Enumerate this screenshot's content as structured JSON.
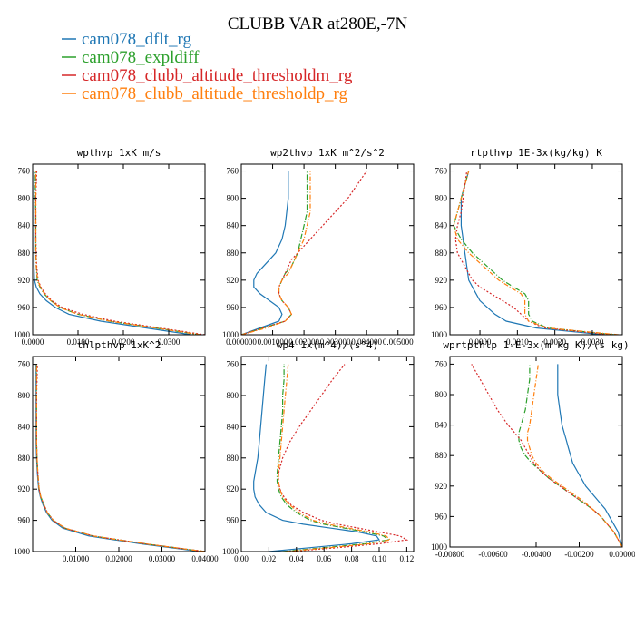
{
  "figure": {
    "title": "CLUBB VAR at280E,-7N",
    "legend": [
      {
        "label": "cam078_dflt_rg",
        "color": "#1f77b4"
      },
      {
        "label": "cam078_expldiff",
        "color": "#2ca02c"
      },
      {
        "label": "cam078_clubb_altitude_thresholdm_rg",
        "color": "#d62728"
      },
      {
        "label": "cam078_clubb_altitude_thresholdp_rg",
        "color": "#ff7f0e"
      }
    ]
  },
  "chart_data": [
    {
      "type": "line",
      "title": "wpthvp  1xK m/s",
      "xlim": [
        0,
        0.038
      ],
      "ylim": [
        1000,
        750
      ],
      "y_reversed": true,
      "xticks": [
        0,
        0.01,
        0.02,
        0.03
      ],
      "xtick_labels": [
        "0.0000",
        "0.0100",
        "0.0200",
        "0.0300"
      ],
      "yticks": [
        760,
        800,
        840,
        880,
        920,
        960,
        1000
      ],
      "y": [
        1000,
        990,
        980,
        970,
        960,
        950,
        940,
        930,
        920,
        900,
        880,
        860,
        840,
        820,
        800,
        780,
        760
      ],
      "series": [
        {
          "name": "cam078_dflt_rg",
          "x": [
            0.035,
            0.025,
            0.015,
            0.008,
            0.005,
            0.003,
            0.0016,
            0.0008,
            0.0004,
            0.0003,
            0.0003,
            0.0003,
            0.0003,
            0.0003,
            0.0003,
            0.0003,
            0.0003
          ]
        },
        {
          "name": "cam078_expldiff",
          "x": [
            0.037,
            0.027,
            0.017,
            0.01,
            0.006,
            0.004,
            0.0025,
            0.0016,
            0.001,
            0.0008,
            0.0007,
            0.0007,
            0.0007,
            0.0007,
            0.0006,
            0.0006,
            0.0006
          ]
        },
        {
          "name": "cam078_clubb_altitude_thresholdm_rg",
          "x": [
            0.038,
            0.028,
            0.018,
            0.011,
            0.0065,
            0.0042,
            0.0028,
            0.0018,
            0.0012,
            0.0009,
            0.0008,
            0.0007,
            0.0007,
            0.0007,
            0.0007,
            0.0008,
            0.0009
          ]
        },
        {
          "name": "cam078_clubb_altitude_thresholdp_rg",
          "x": [
            0.037,
            0.027,
            0.017,
            0.01,
            0.006,
            0.004,
            0.0026,
            0.0017,
            0.0011,
            0.0008,
            0.0007,
            0.0007,
            0.0007,
            0.0007,
            0.0007,
            0.0007,
            0.0007
          ]
        }
      ]
    },
    {
      "type": "line",
      "title": "wp2thvp  1xK m^2/s^2",
      "xlim": [
        0,
        0.0055
      ],
      "ylim": [
        1000,
        750
      ],
      "y_reversed": true,
      "xticks": [
        0,
        0.001,
        0.002,
        0.003,
        0.004,
        0.005
      ],
      "xtick_labels": [
        "0.000000",
        "0.001000",
        "0.002000",
        "0.003000",
        "0.004000",
        "0.005000"
      ],
      "yticks": [
        760,
        800,
        840,
        880,
        920,
        960,
        1000
      ],
      "y": [
        1000,
        990,
        980,
        970,
        960,
        950,
        940,
        930,
        920,
        910,
        900,
        890,
        880,
        860,
        840,
        820,
        800,
        780,
        760
      ],
      "series": [
        {
          "name": "cam078_dflt_rg",
          "x": [
            0,
            0.0006,
            0.0012,
            0.0013,
            0.0012,
            0.0009,
            0.0006,
            0.0004,
            0.0004,
            0.0005,
            0.0007,
            0.0009,
            0.0011,
            0.0013,
            0.0014,
            0.00145,
            0.0015,
            0.0015,
            0.0015
          ]
        },
        {
          "name": "cam078_expldiff",
          "x": [
            0,
            0.0007,
            0.0014,
            0.0016,
            0.0015,
            0.0013,
            0.0012,
            0.0012,
            0.0013,
            0.0014,
            0.0016,
            0.0017,
            0.0018,
            0.0019,
            0.002,
            0.0021,
            0.0021,
            0.0021,
            0.0021
          ]
        },
        {
          "name": "cam078_clubb_altitude_thresholdm_rg",
          "x": [
            0,
            0.0007,
            0.0014,
            0.0016,
            0.0015,
            0.0013,
            0.0012,
            0.0012,
            0.0013,
            0.0014,
            0.0015,
            0.0016,
            0.0018,
            0.0022,
            0.0026,
            0.003,
            0.0034,
            0.0037,
            0.004
          ]
        },
        {
          "name": "cam078_clubb_altitude_thresholdp_rg",
          "x": [
            0,
            0.0008,
            0.0014,
            0.0016,
            0.0015,
            0.0013,
            0.0012,
            0.0012,
            0.0013,
            0.0015,
            0.0016,
            0.0017,
            0.0018,
            0.002,
            0.0021,
            0.0022,
            0.0022,
            0.0022,
            0.0022
          ]
        }
      ]
    },
    {
      "type": "line",
      "title": "rtpthvp  1E-3x(kg/kg) K",
      "xlim": [
        -0.0008,
        0.0038
      ],
      "ylim": [
        1000,
        750
      ],
      "y_reversed": true,
      "xticks": [
        0,
        0.001,
        0.002,
        0.003
      ],
      "xtick_labels": [
        "0.0000",
        "0.0010",
        "0.0020",
        "0.0030"
      ],
      "yticks": [
        760,
        800,
        840,
        880,
        920,
        960,
        1000
      ],
      "y": [
        1000,
        990,
        980,
        970,
        960,
        950,
        940,
        930,
        920,
        900,
        880,
        860,
        840,
        820,
        800,
        780,
        760
      ],
      "series": [
        {
          "name": "cam078_dflt_rg",
          "x": [
            0.0033,
            0.0015,
            0.0007,
            0.0004,
            0.0002,
            0,
            -0.0001,
            -0.0002,
            -0.0003,
            -0.00035,
            -0.0004,
            -0.00045,
            -0.0005,
            -0.0005,
            -0.0005,
            -0.0004,
            -0.0003
          ]
        },
        {
          "name": "cam078_expldiff",
          "x": [
            0.0036,
            0.0018,
            0.0014,
            0.0013,
            0.0013,
            0.0013,
            0.0012,
            0.0009,
            0.0006,
            0.0002,
            -0.0002,
            -0.0005,
            -0.0007,
            -0.0006,
            -0.0005,
            -0.0004,
            -0.0003
          ]
        },
        {
          "name": "cam078_clubb_altitude_thresholdm_rg",
          "x": [
            0.0035,
            0.0017,
            0.0013,
            0.0011,
            0.0009,
            0.0006,
            0.0003,
            0,
            -0.0002,
            -0.0004,
            -0.0006,
            -0.00065,
            -0.0006,
            -0.0005,
            -0.00045,
            -0.0004,
            -0.00035
          ]
        },
        {
          "name": "cam078_clubb_altitude_thresholdp_rg",
          "x": [
            0.0037,
            0.0018,
            0.0013,
            0.0012,
            0.0012,
            0.0012,
            0.0011,
            0.0008,
            0.0005,
            0.0001,
            -0.0003,
            -0.0006,
            -0.0007,
            -0.0006,
            -0.0005,
            -0.0004,
            -0.0003
          ]
        }
      ]
    },
    {
      "type": "line",
      "title": "thlpthvp  1xK^2",
      "xlim": [
        0,
        0.04
      ],
      "ylim": [
        1000,
        750
      ],
      "y_reversed": true,
      "xticks": [
        0.01,
        0.02,
        0.03,
        0.04
      ],
      "xtick_labels": [
        "0.01000",
        "0.02000",
        "0.03000",
        "0.04000"
      ],
      "yticks": [
        760,
        800,
        840,
        880,
        920,
        960,
        1000
      ],
      "y": [
        1000,
        990,
        980,
        970,
        960,
        950,
        940,
        930,
        920,
        900,
        880,
        860,
        840,
        820,
        800,
        780,
        760
      ],
      "series": [
        {
          "name": "cam078_dflt_rg",
          "x": [
            0.039,
            0.025,
            0.013,
            0.007,
            0.0045,
            0.0032,
            0.0024,
            0.0018,
            0.0014,
            0.0011,
            0.0009,
            0.0008,
            0.0008,
            0.0008,
            0.0008,
            0.0008,
            0.0008
          ]
        },
        {
          "name": "cam078_expldiff",
          "x": [
            0.04,
            0.026,
            0.014,
            0.0075,
            0.0048,
            0.0034,
            0.0026,
            0.0019,
            0.0015,
            0.0012,
            0.001,
            0.0009,
            0.0009,
            0.0009,
            0.0009,
            0.0009,
            0.0009
          ]
        },
        {
          "name": "cam078_clubb_altitude_thresholdm_rg",
          "x": [
            0.04,
            0.026,
            0.014,
            0.0075,
            0.0048,
            0.0034,
            0.0026,
            0.0019,
            0.0015,
            0.0012,
            0.001,
            0.0009,
            0.0009,
            0.0009,
            0.0009,
            0.001,
            0.0011
          ]
        },
        {
          "name": "cam078_clubb_altitude_thresholdp_rg",
          "x": [
            0.04,
            0.026,
            0.014,
            0.0075,
            0.0048,
            0.0034,
            0.0026,
            0.0019,
            0.0015,
            0.0012,
            0.001,
            0.0009,
            0.0009,
            0.0009,
            0.0009,
            0.0009,
            0.0009
          ]
        }
      ]
    },
    {
      "type": "line",
      "title": "wp4  1x(m^4)/(s^4)",
      "xlim": [
        0,
        0.125
      ],
      "ylim": [
        1000,
        750
      ],
      "y_reversed": true,
      "xticks": [
        0,
        0.02,
        0.04,
        0.06,
        0.08,
        0.1,
        0.12
      ],
      "xtick_labels": [
        "0.00",
        "0.02",
        "0.04",
        "0.06",
        "0.08",
        "0.10",
        "0.12"
      ],
      "yticks": [
        760,
        800,
        840,
        880,
        920,
        960,
        1000
      ],
      "y": [
        1000,
        995,
        990,
        985,
        980,
        975,
        970,
        965,
        960,
        950,
        940,
        930,
        920,
        910,
        900,
        880,
        860,
        840,
        820,
        800,
        780,
        760
      ],
      "series": [
        {
          "name": "cam078_dflt_rg",
          "x": [
            0.02,
            0.05,
            0.08,
            0.1,
            0.098,
            0.085,
            0.065,
            0.045,
            0.03,
            0.018,
            0.013,
            0.01,
            0.009,
            0.009,
            0.01,
            0.012,
            0.013,
            0.014,
            0.015,
            0.016,
            0.017,
            0.018
          ]
        },
        {
          "name": "cam078_expldiff",
          "x": [
            0.03,
            0.06,
            0.09,
            0.107,
            0.103,
            0.09,
            0.075,
            0.06,
            0.05,
            0.04,
            0.033,
            0.029,
            0.027,
            0.026,
            0.026,
            0.027,
            0.028,
            0.029,
            0.03,
            0.03,
            0.031,
            0.031
          ]
        },
        {
          "name": "cam078_clubb_altitude_thresholdm_rg",
          "x": [
            0.035,
            0.07,
            0.1,
            0.12,
            0.115,
            0.1,
            0.085,
            0.07,
            0.058,
            0.045,
            0.036,
            0.031,
            0.028,
            0.027,
            0.027,
            0.03,
            0.035,
            0.042,
            0.05,
            0.058,
            0.066,
            0.075
          ]
        },
        {
          "name": "cam078_clubb_altitude_thresholdp_rg",
          "x": [
            0.032,
            0.064,
            0.093,
            0.108,
            0.105,
            0.093,
            0.078,
            0.063,
            0.052,
            0.042,
            0.035,
            0.03,
            0.028,
            0.027,
            0.027,
            0.028,
            0.029,
            0.03,
            0.031,
            0.032,
            0.033,
            0.034
          ]
        }
      ]
    },
    {
      "type": "line",
      "title": "wprtpthlp  1-E-3x(m kg K)/(s kg)",
      "xlim": [
        -0.008,
        0
      ],
      "ylim": [
        1000,
        750
      ],
      "y_reversed": true,
      "xticks": [
        -0.008,
        -0.006,
        -0.004,
        -0.002,
        0
      ],
      "xtick_labels": [
        "-0.00800",
        "-0.00600",
        "-0.00400",
        "-0.00200",
        "0.00000"
      ],
      "yticks": [
        760,
        800,
        840,
        880,
        920,
        960,
        1000
      ],
      "y": [
        1000,
        990,
        980,
        970,
        960,
        950,
        940,
        930,
        920,
        910,
        900,
        890,
        880,
        870,
        860,
        850,
        840,
        820,
        800,
        780,
        760
      ],
      "series": [
        {
          "name": "cam078_dflt_rg",
          "x": [
            0,
            -0.0001,
            -0.0002,
            -0.0004,
            -0.0006,
            -0.0008,
            -0.0011,
            -0.0014,
            -0.0017,
            -0.0019,
            -0.0021,
            -0.0023,
            -0.0024,
            -0.0025,
            -0.0026,
            -0.0027,
            -0.0028,
            -0.0029,
            -0.003,
            -0.003,
            -0.003
          ]
        },
        {
          "name": "cam078_expldiff",
          "x": [
            0,
            -0.0002,
            -0.0004,
            -0.0007,
            -0.001,
            -0.0014,
            -0.0019,
            -0.0024,
            -0.0029,
            -0.0034,
            -0.0038,
            -0.0042,
            -0.0045,
            -0.0047,
            -0.0048,
            -0.0048,
            -0.0047,
            -0.0045,
            -0.0044,
            -0.0043,
            -0.0043
          ]
        },
        {
          "name": "cam078_clubb_altitude_thresholdm_rg",
          "x": [
            0,
            -0.0002,
            -0.0004,
            -0.0007,
            -0.001,
            -0.0014,
            -0.0019,
            -0.0024,
            -0.0029,
            -0.0034,
            -0.0038,
            -0.0041,
            -0.0043,
            -0.0045,
            -0.0047,
            -0.005,
            -0.0053,
            -0.0058,
            -0.0062,
            -0.0066,
            -0.007
          ]
        },
        {
          "name": "cam078_clubb_altitude_thresholdp_rg",
          "x": [
            0,
            -0.0002,
            -0.0004,
            -0.0007,
            -0.001,
            -0.0014,
            -0.0018,
            -0.0023,
            -0.0028,
            -0.0033,
            -0.0037,
            -0.004,
            -0.0042,
            -0.0043,
            -0.0044,
            -0.0044,
            -0.0043,
            -0.0042,
            -0.0041,
            -0.004,
            -0.0039
          ]
        }
      ]
    }
  ]
}
